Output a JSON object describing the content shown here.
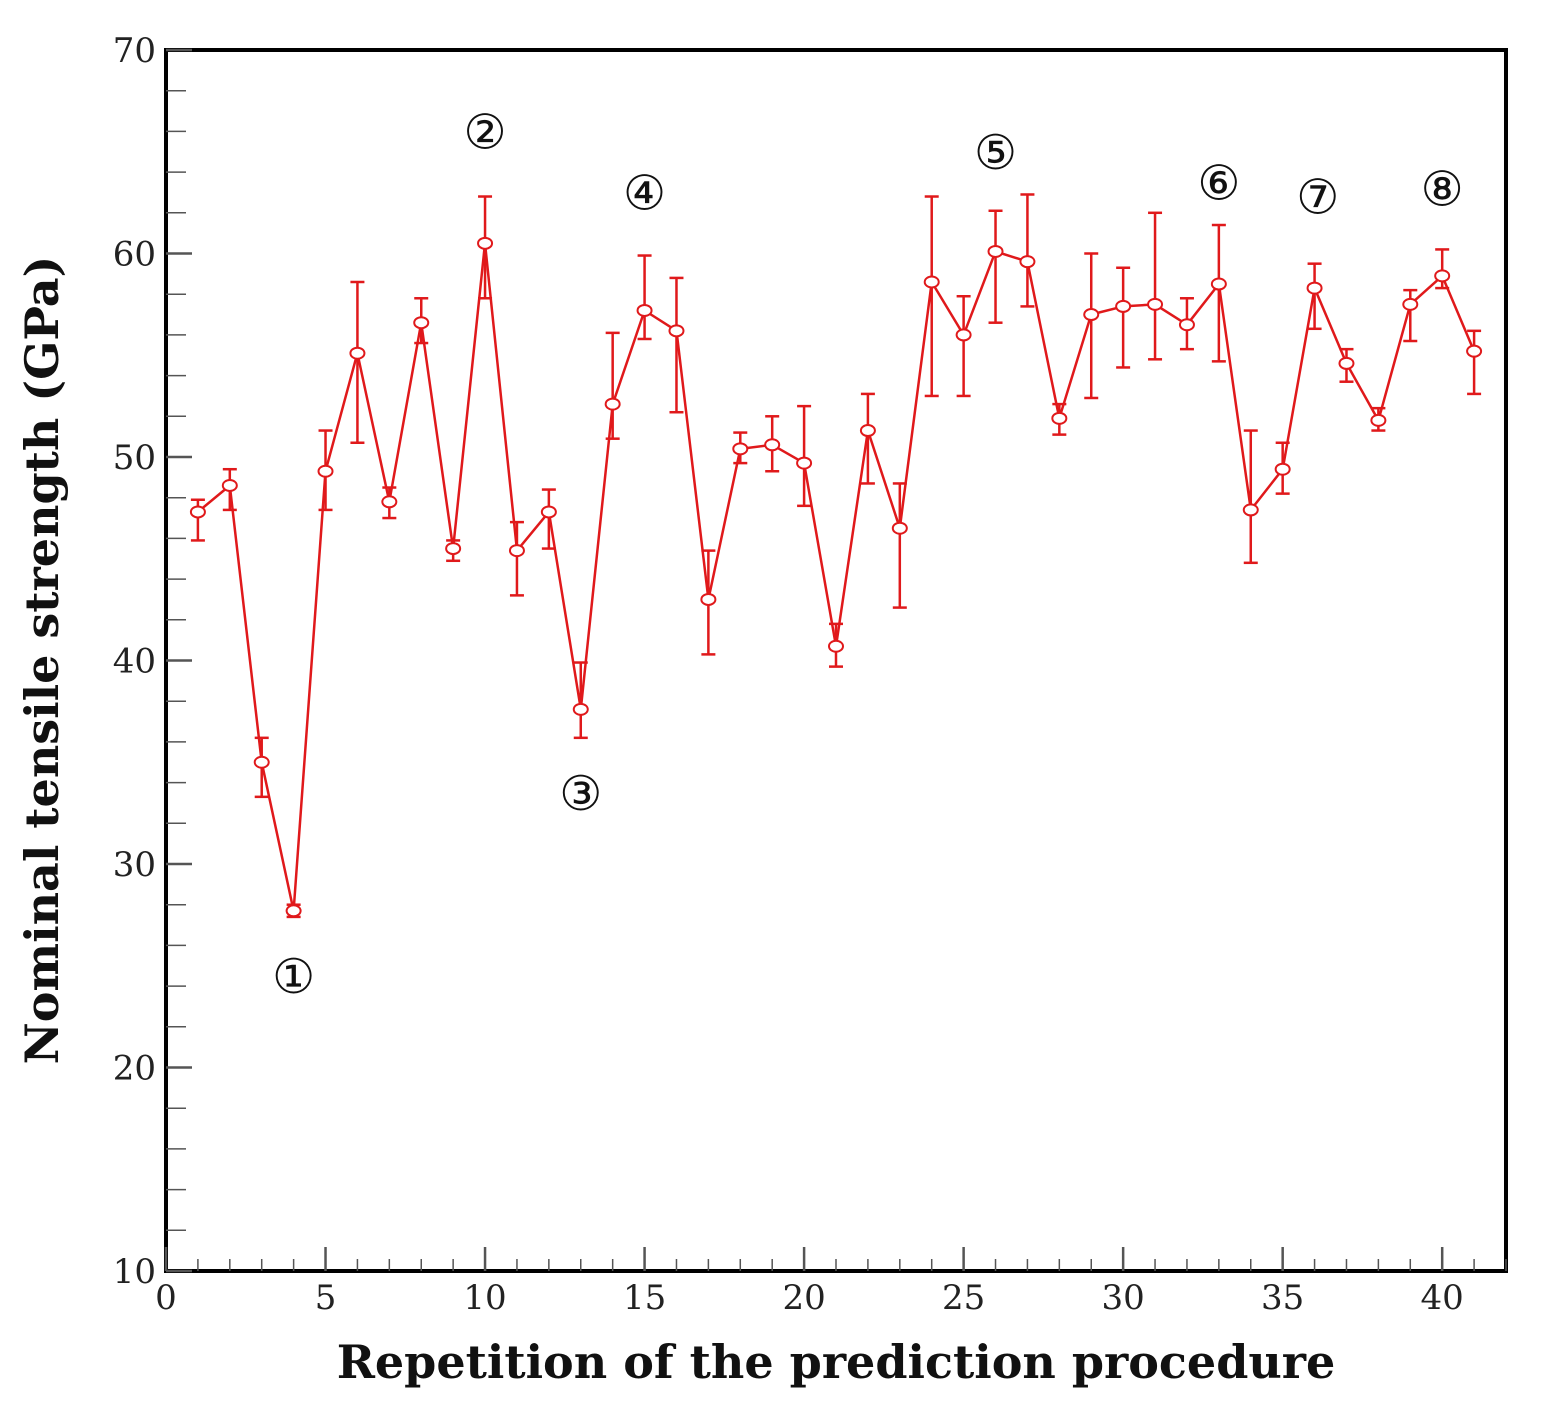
{
  "colors": {
    "series": "#e0191b",
    "axis": "#000000"
  },
  "chart_data": {
    "type": "line",
    "title": "",
    "xlabel": "Repetition of the prediction procedure",
    "ylabel": "Nominal tensile strength (GPa)",
    "xlim": [
      0,
      42
    ],
    "ylim": [
      10,
      70
    ],
    "xticks": [
      0,
      5,
      10,
      15,
      20,
      25,
      30,
      35,
      40
    ],
    "xtick_labels": [
      "0",
      "5",
      "10",
      "15",
      "20",
      "25",
      "30",
      "35",
      "40"
    ],
    "yticks": [
      10,
      20,
      30,
      40,
      50,
      60,
      70
    ],
    "ytick_labels": [
      "10",
      "20",
      "30",
      "40",
      "50",
      "60",
      "70"
    ],
    "y_minor_step": 2,
    "grid": false,
    "series": [
      {
        "name": "Nominal tensile strength",
        "x": [
          1,
          2,
          3,
          4,
          5,
          6,
          7,
          8,
          9,
          10,
          11,
          12,
          13,
          14,
          15,
          16,
          17,
          18,
          19,
          20,
          21,
          22,
          23,
          24,
          25,
          26,
          27,
          28,
          29,
          30,
          31,
          32,
          33,
          34,
          35,
          36,
          37,
          38,
          39,
          40,
          41
        ],
        "values": [
          47.3,
          48.6,
          35.0,
          27.7,
          49.3,
          55.1,
          47.8,
          56.6,
          45.5,
          60.5,
          45.4,
          47.3,
          37.6,
          52.6,
          57.2,
          56.2,
          43.0,
          50.4,
          50.6,
          49.7,
          40.7,
          51.3,
          46.5,
          58.6,
          56.0,
          60.1,
          59.6,
          51.9,
          57.0,
          57.4,
          57.5,
          56.5,
          58.5,
          47.4,
          49.4,
          58.3,
          54.6,
          51.8,
          57.5,
          58.9,
          55.2
        ],
        "err_low": [
          1.4,
          1.2,
          1.7,
          0.3,
          1.9,
          4.4,
          0.8,
          1.0,
          0.6,
          2.7,
          2.2,
          1.8,
          1.4,
          1.7,
          1.4,
          4.0,
          2.7,
          0.7,
          1.3,
          2.1,
          1.0,
          2.6,
          3.9,
          5.6,
          3.0,
          3.5,
          2.2,
          0.8,
          4.1,
          3.0,
          2.7,
          1.2,
          3.8,
          2.6,
          1.2,
          2.0,
          0.9,
          0.5,
          1.8,
          0.6,
          2.1
        ],
        "err_high": [
          0.6,
          0.8,
          1.2,
          0.3,
          2.0,
          3.5,
          0.7,
          1.2,
          0.4,
          2.3,
          1.4,
          1.1,
          2.3,
          3.5,
          2.7,
          2.6,
          2.4,
          0.8,
          1.4,
          2.8,
          1.1,
          1.8,
          2.2,
          4.2,
          1.9,
          2.0,
          3.3,
          0.7,
          3.0,
          1.9,
          4.5,
          1.3,
          2.9,
          3.9,
          1.3,
          1.2,
          0.7,
          0.6,
          0.7,
          1.3,
          1.0
        ]
      }
    ],
    "annotations": [
      {
        "text": "①",
        "x": 4.0,
        "y": 24.5
      },
      {
        "text": "②",
        "x": 10.0,
        "y": 66.0
      },
      {
        "text": "③",
        "x": 13.0,
        "y": 33.5
      },
      {
        "text": "④",
        "x": 15.0,
        "y": 63.0
      },
      {
        "text": "⑤",
        "x": 26.0,
        "y": 65.0
      },
      {
        "text": "⑥",
        "x": 33.0,
        "y": 63.5
      },
      {
        "text": "⑦",
        "x": 36.1,
        "y": 62.8
      },
      {
        "text": "⑧",
        "x": 40.0,
        "y": 63.2
      }
    ]
  }
}
